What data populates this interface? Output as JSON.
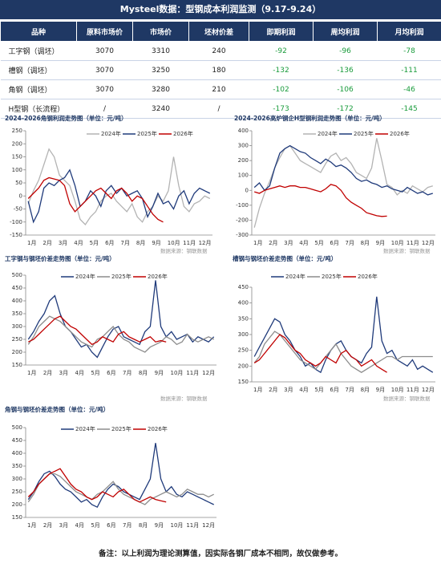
{
  "title": "Mysteel数据：型钢成本利润监测（9.17-9.24）",
  "table": {
    "header": [
      "品种",
      "原料市场价",
      "市场价",
      "坯材价差",
      "即期利润",
      "周均利润",
      "月均利润"
    ],
    "rows": [
      [
        "工字钢（调坯）",
        3070,
        3310,
        240,
        -92,
        -96,
        -78
      ],
      [
        "槽钢（调坯）",
        3070,
        3250,
        180,
        -132,
        -136,
        -111
      ],
      [
        "角钢（调坯）",
        3070,
        3280,
        210,
        -102,
        -106,
        -46
      ],
      [
        "H型钢（长流程）",
        "/",
        3240,
        "/",
        -173,
        -172,
        -145
      ]
    ]
  },
  "chart_data": [
    {
      "type": "line",
      "title": "2024-2026角钢利润走势图（单位：元/吨）",
      "source": "数据来源：钢联数据",
      "categories": [
        "1月",
        null,
        null,
        "2月",
        null,
        null,
        "3月",
        null,
        null,
        "4月",
        null,
        null,
        "5月",
        null,
        null,
        "6月",
        null,
        null,
        "7月",
        null,
        null,
        "8月",
        null,
        null,
        "9月",
        null,
        null,
        "10月",
        null,
        null,
        "11月",
        null,
        null,
        "12月",
        null,
        null
      ],
      "ylim": [
        -150,
        250
      ],
      "yticks": [
        250,
        200,
        150,
        100,
        50,
        0,
        -50,
        -100,
        -150
      ],
      "grid": false,
      "series": [
        {
          "name": "2024年",
          "color": "#b3b3b3",
          "values": [
            -30,
            20,
            60,
            120,
            180,
            150,
            80,
            60,
            40,
            -20,
            -90,
            -110,
            -80,
            -60,
            -20,
            0,
            10,
            -20,
            -40,
            -60,
            -30,
            -80,
            -100,
            -60,
            -40,
            0,
            -20,
            20,
            150,
            40,
            -40,
            -60,
            -30,
            -20,
            0,
            -10
          ]
        },
        {
          "name": "2025年",
          "color": "#1f3a7a",
          "values": [
            -20,
            -100,
            -60,
            30,
            50,
            40,
            60,
            70,
            100,
            40,
            -40,
            -20,
            20,
            0,
            -40,
            20,
            40,
            10,
            30,
            0,
            10,
            20,
            -10,
            -80,
            -40,
            10,
            -30,
            -20,
            -50,
            0,
            20,
            -30,
            10,
            30,
            20,
            10
          ]
        },
        {
          "name": "2026年",
          "color": "#c00000",
          "values": [
            -10,
            10,
            30,
            60,
            70,
            65,
            60,
            40,
            -30,
            -60,
            -40,
            -20,
            0,
            20,
            30,
            10,
            -10,
            20,
            30,
            10,
            -20,
            0,
            -10,
            -40,
            -70,
            -90,
            -100,
            null,
            null,
            null,
            null,
            null,
            null,
            null,
            null,
            null
          ]
        }
      ]
    },
    {
      "type": "line",
      "title": "2024-2026高炉钢企H型钢利润走势图（单位：元/吨）",
      "source": "数据来源：钢联数据",
      "categories": [
        "1月",
        null,
        null,
        "2月",
        null,
        null,
        "3月",
        null,
        null,
        "4月",
        null,
        null,
        "5月",
        null,
        null,
        "6月",
        null,
        null,
        "7月",
        null,
        null,
        "8月",
        null,
        null,
        "9月",
        null,
        null,
        "10月",
        null,
        null,
        "11月",
        null,
        null,
        "12月",
        null,
        null
      ],
      "ylim": [
        -300,
        400
      ],
      "yticks": [
        400,
        300,
        200,
        100,
        0,
        -100,
        -200,
        -300
      ],
      "grid": false,
      "series": [
        {
          "name": "2024年",
          "color": "#b3b3b3",
          "values": [
            -250,
            -120,
            -20,
            60,
            150,
            220,
            280,
            300,
            250,
            200,
            180,
            160,
            140,
            120,
            180,
            230,
            250,
            200,
            220,
            180,
            120,
            100,
            80,
            150,
            350,
            200,
            40,
            20,
            -30,
            0,
            -20,
            30,
            10,
            -10,
            20,
            30
          ]
        },
        {
          "name": "2025年",
          "color": "#1f3a7a",
          "values": [
            20,
            50,
            0,
            30,
            150,
            250,
            280,
            300,
            280,
            260,
            250,
            220,
            200,
            180,
            210,
            190,
            160,
            170,
            150,
            120,
            80,
            60,
            70,
            50,
            40,
            20,
            30,
            10,
            0,
            -10,
            20,
            0,
            -20,
            -10,
            -30,
            -20
          ]
        },
        {
          "name": "2026年",
          "color": "#c00000",
          "values": [
            -10,
            -20,
            0,
            10,
            20,
            30,
            20,
            30,
            30,
            20,
            20,
            10,
            0,
            -10,
            10,
            40,
            30,
            0,
            -50,
            -80,
            -100,
            -120,
            -150,
            -160,
            -170,
            -175,
            -173,
            null,
            null,
            null,
            null,
            null,
            null,
            null,
            null,
            null
          ]
        }
      ]
    },
    {
      "type": "line",
      "title": "工字钢与钢坯价差走势图（单位：元/吨）",
      "source": "数据来源：钢联数据",
      "categories": [
        "1月",
        null,
        null,
        "2月",
        null,
        null,
        "3月",
        null,
        null,
        "4月",
        null,
        null,
        "5月",
        null,
        null,
        "6月",
        null,
        null,
        "7月",
        null,
        null,
        "8月",
        null,
        null,
        "9月",
        null,
        null,
        "10月",
        null,
        null,
        "11月",
        null,
        null,
        "12月",
        null,
        null
      ],
      "ylim": [
        150,
        500
      ],
      "yticks": [
        500,
        450,
        400,
        350,
        300,
        250,
        200,
        150
      ],
      "grid": false,
      "series": [
        {
          "name": "2024年",
          "color": "#1f3a7a",
          "values": [
            250,
            280,
            320,
            350,
            400,
            420,
            350,
            300,
            280,
            250,
            220,
            230,
            200,
            180,
            220,
            260,
            290,
            300,
            260,
            250,
            240,
            230,
            280,
            300,
            480,
            300,
            260,
            280,
            250,
            260,
            270,
            240,
            260,
            250,
            240,
            260
          ]
        },
        {
          "name": "2025年",
          "color": "#8c8c8c",
          "values": [
            230,
            260,
            300,
            320,
            340,
            330,
            320,
            300,
            280,
            260,
            240,
            230,
            220,
            250,
            260,
            280,
            300,
            270,
            250,
            240,
            220,
            210,
            200,
            220,
            230,
            240,
            260,
            250,
            230,
            240,
            270,
            250,
            240,
            250,
            260,
            250
          ]
        },
        {
          "name": "2026年",
          "color": "#c00000",
          "values": [
            240,
            250,
            270,
            290,
            310,
            330,
            340,
            320,
            300,
            290,
            270,
            250,
            230,
            240,
            260,
            250,
            240,
            270,
            280,
            260,
            250,
            240,
            250,
            260,
            240,
            245,
            240,
            null,
            null,
            null,
            null,
            null,
            null,
            null,
            null,
            null
          ]
        }
      ]
    },
    {
      "type": "line",
      "title": "槽钢与钢坯价差走势图（单位：元/吨）",
      "source": "数据来源：钢联数据",
      "categories": [
        "1月",
        null,
        null,
        "2月",
        null,
        null,
        "3月",
        null,
        null,
        "4月",
        null,
        null,
        "5月",
        null,
        null,
        "6月",
        null,
        null,
        "7月",
        null,
        null,
        "8月",
        null,
        null,
        "9月",
        null,
        null,
        "10月",
        null,
        null,
        "11月",
        null,
        null,
        "12月",
        null,
        null
      ],
      "ylim": [
        150,
        450
      ],
      "yticks": [
        450,
        400,
        350,
        300,
        250,
        200,
        150
      ],
      "grid": false,
      "series": [
        {
          "name": "2024年",
          "color": "#1f3a7a",
          "values": [
            230,
            260,
            290,
            320,
            350,
            340,
            300,
            280,
            250,
            230,
            200,
            210,
            190,
            180,
            220,
            250,
            270,
            280,
            250,
            230,
            220,
            210,
            240,
            260,
            420,
            280,
            240,
            250,
            220,
            210,
            200,
            220,
            190,
            200,
            190,
            180
          ]
        },
        {
          "name": "2025年",
          "color": "#8c8c8c",
          "values": [
            210,
            230,
            270,
            290,
            310,
            300,
            280,
            260,
            240,
            220,
            210,
            200,
            190,
            210,
            230,
            250,
            270,
            240,
            220,
            200,
            190,
            180,
            190,
            200,
            210,
            220,
            230,
            230,
            220,
            230,
            230,
            230,
            230,
            230,
            230,
            230
          ]
        },
        {
          "name": "2026年",
          "color": "#c00000",
          "values": [
            210,
            220,
            240,
            260,
            280,
            300,
            290,
            270,
            250,
            240,
            220,
            210,
            200,
            210,
            230,
            220,
            210,
            240,
            250,
            230,
            220,
            200,
            210,
            220,
            200,
            190,
            180,
            null,
            null,
            null,
            null,
            null,
            null,
            null,
            null,
            null
          ]
        }
      ]
    },
    {
      "type": "line",
      "title": "角钢与钢坯价差走势图（单位：元/吨）",
      "categories": [
        "1月",
        null,
        null,
        "2月",
        null,
        null,
        "3月",
        null,
        null,
        "4月",
        null,
        null,
        "5月",
        null,
        null,
        "6月",
        null,
        null,
        "7月",
        null,
        null,
        "8月",
        null,
        null,
        "9月",
        null,
        null,
        "10月",
        null,
        null,
        "11月",
        null,
        null,
        "12月",
        null,
        null
      ],
      "ylim": [
        150,
        500
      ],
      "yticks": [
        500,
        450,
        400,
        350,
        300,
        250,
        200,
        150
      ],
      "grid": false,
      "series": [
        {
          "name": "2024年",
          "color": "#1f3a7a",
          "values": [
            220,
            250,
            290,
            320,
            330,
            310,
            280,
            260,
            250,
            230,
            210,
            220,
            200,
            190,
            230,
            260,
            280,
            270,
            250,
            240,
            230,
            220,
            260,
            300,
            440,
            300,
            250,
            270,
            240,
            230,
            250,
            240,
            230,
            220,
            210,
            200
          ]
        },
        {
          "name": "2025年",
          "color": "#8c8c8c",
          "values": [
            210,
            240,
            280,
            300,
            320,
            320,
            310,
            290,
            270,
            250,
            240,
            230,
            220,
            240,
            250,
            270,
            290,
            260,
            240,
            230,
            220,
            210,
            200,
            220,
            230,
            240,
            250,
            240,
            230,
            240,
            260,
            250,
            240,
            240,
            230,
            240
          ]
        },
        {
          "name": "2026年",
          "color": "#c00000",
          "values": [
            230,
            250,
            280,
            300,
            320,
            330,
            340,
            310,
            280,
            260,
            250,
            230,
            220,
            230,
            250,
            240,
            230,
            250,
            260,
            240,
            220,
            210,
            220,
            230,
            220,
            215,
            210,
            null,
            null,
            null,
            null,
            null,
            null,
            null,
            null,
            null
          ]
        }
      ]
    }
  ],
  "note": "备注：以上利润为理论测算值，因实际各钢厂成本不相同，故仅做参考。"
}
